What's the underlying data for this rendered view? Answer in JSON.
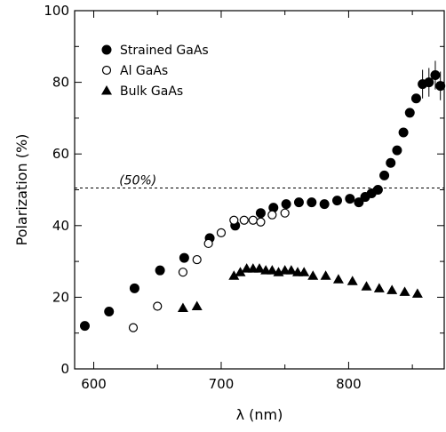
{
  "chart_data": {
    "type": "scatter",
    "xlabel": "λ (nm)",
    "ylabel": "Polarization (%)",
    "xlim": [
      585,
      875
    ],
    "ylim": [
      0,
      100
    ],
    "x_ticks": [
      600,
      700,
      800
    ],
    "y_ticks": [
      0,
      20,
      40,
      60,
      80,
      100
    ],
    "grid": false,
    "legend_position": "top-left",
    "reference_line": {
      "y": 50.5,
      "label": "(50%)",
      "style": "dashed"
    },
    "series": [
      {
        "name": "Strained GaAs",
        "marker": "filled-circle",
        "color": "#000000",
        "points": [
          {
            "x": 593,
            "y": 12
          },
          {
            "x": 612,
            "y": 16
          },
          {
            "x": 632,
            "y": 22.5
          },
          {
            "x": 652,
            "y": 27.5
          },
          {
            "x": 671,
            "y": 31
          },
          {
            "x": 691,
            "y": 36.5
          },
          {
            "x": 711,
            "y": 40
          },
          {
            "x": 731,
            "y": 43.5
          },
          {
            "x": 741,
            "y": 45
          },
          {
            "x": 751,
            "y": 46
          },
          {
            "x": 761,
            "y": 46.5
          },
          {
            "x": 771,
            "y": 46.5
          },
          {
            "x": 781,
            "y": 46
          },
          {
            "x": 791,
            "y": 47
          },
          {
            "x": 801,
            "y": 47.5
          },
          {
            "x": 808,
            "y": 46.5
          },
          {
            "x": 813,
            "y": 48
          },
          {
            "x": 818,
            "y": 49
          },
          {
            "x": 823,
            "y": 50
          },
          {
            "x": 828,
            "y": 54
          },
          {
            "x": 833,
            "y": 57.5
          },
          {
            "x": 838,
            "y": 61
          },
          {
            "x": 843,
            "y": 66
          },
          {
            "x": 848,
            "y": 71.5
          },
          {
            "x": 853,
            "y": 75.5
          },
          {
            "x": 858,
            "y": 79.5
          },
          {
            "x": 863,
            "y": 80
          },
          {
            "x": 868,
            "y": 82
          },
          {
            "x": 872,
            "y": 79
          }
        ]
      },
      {
        "name": "Al GaAs",
        "marker": "open-circle",
        "color": "#000000",
        "points": [
          {
            "x": 631,
            "y": 11.5
          },
          {
            "x": 650,
            "y": 17.5
          },
          {
            "x": 670,
            "y": 27
          },
          {
            "x": 681,
            "y": 30.5
          },
          {
            "x": 690,
            "y": 35
          },
          {
            "x": 700,
            "y": 38
          },
          {
            "x": 710,
            "y": 41.5
          },
          {
            "x": 718,
            "y": 41.5
          },
          {
            "x": 725,
            "y": 41.5
          },
          {
            "x": 731,
            "y": 41
          },
          {
            "x": 740,
            "y": 43
          },
          {
            "x": 750,
            "y": 43.5
          }
        ]
      },
      {
        "name": "Bulk GaAs",
        "marker": "filled-triangle",
        "color": "#000000",
        "points": [
          {
            "x": 670,
            "y": 17
          },
          {
            "x": 681,
            "y": 17.5
          },
          {
            "x": 710,
            "y": 26
          },
          {
            "x": 715,
            "y": 27
          },
          {
            "x": 720,
            "y": 28
          },
          {
            "x": 725,
            "y": 28
          },
          {
            "x": 730,
            "y": 28
          },
          {
            "x": 735,
            "y": 27.5
          },
          {
            "x": 740,
            "y": 27.5
          },
          {
            "x": 745,
            "y": 27
          },
          {
            "x": 750,
            "y": 27.5
          },
          {
            "x": 755,
            "y": 27.5
          },
          {
            "x": 760,
            "y": 27
          },
          {
            "x": 765,
            "y": 27
          },
          {
            "x": 772,
            "y": 26
          },
          {
            "x": 782,
            "y": 26
          },
          {
            "x": 792,
            "y": 25
          },
          {
            "x": 803,
            "y": 24.5
          },
          {
            "x": 814,
            "y": 23
          },
          {
            "x": 824,
            "y": 22.5
          },
          {
            "x": 834,
            "y": 22
          },
          {
            "x": 844,
            "y": 21.5
          },
          {
            "x": 854,
            "y": 21
          }
        ]
      }
    ]
  }
}
